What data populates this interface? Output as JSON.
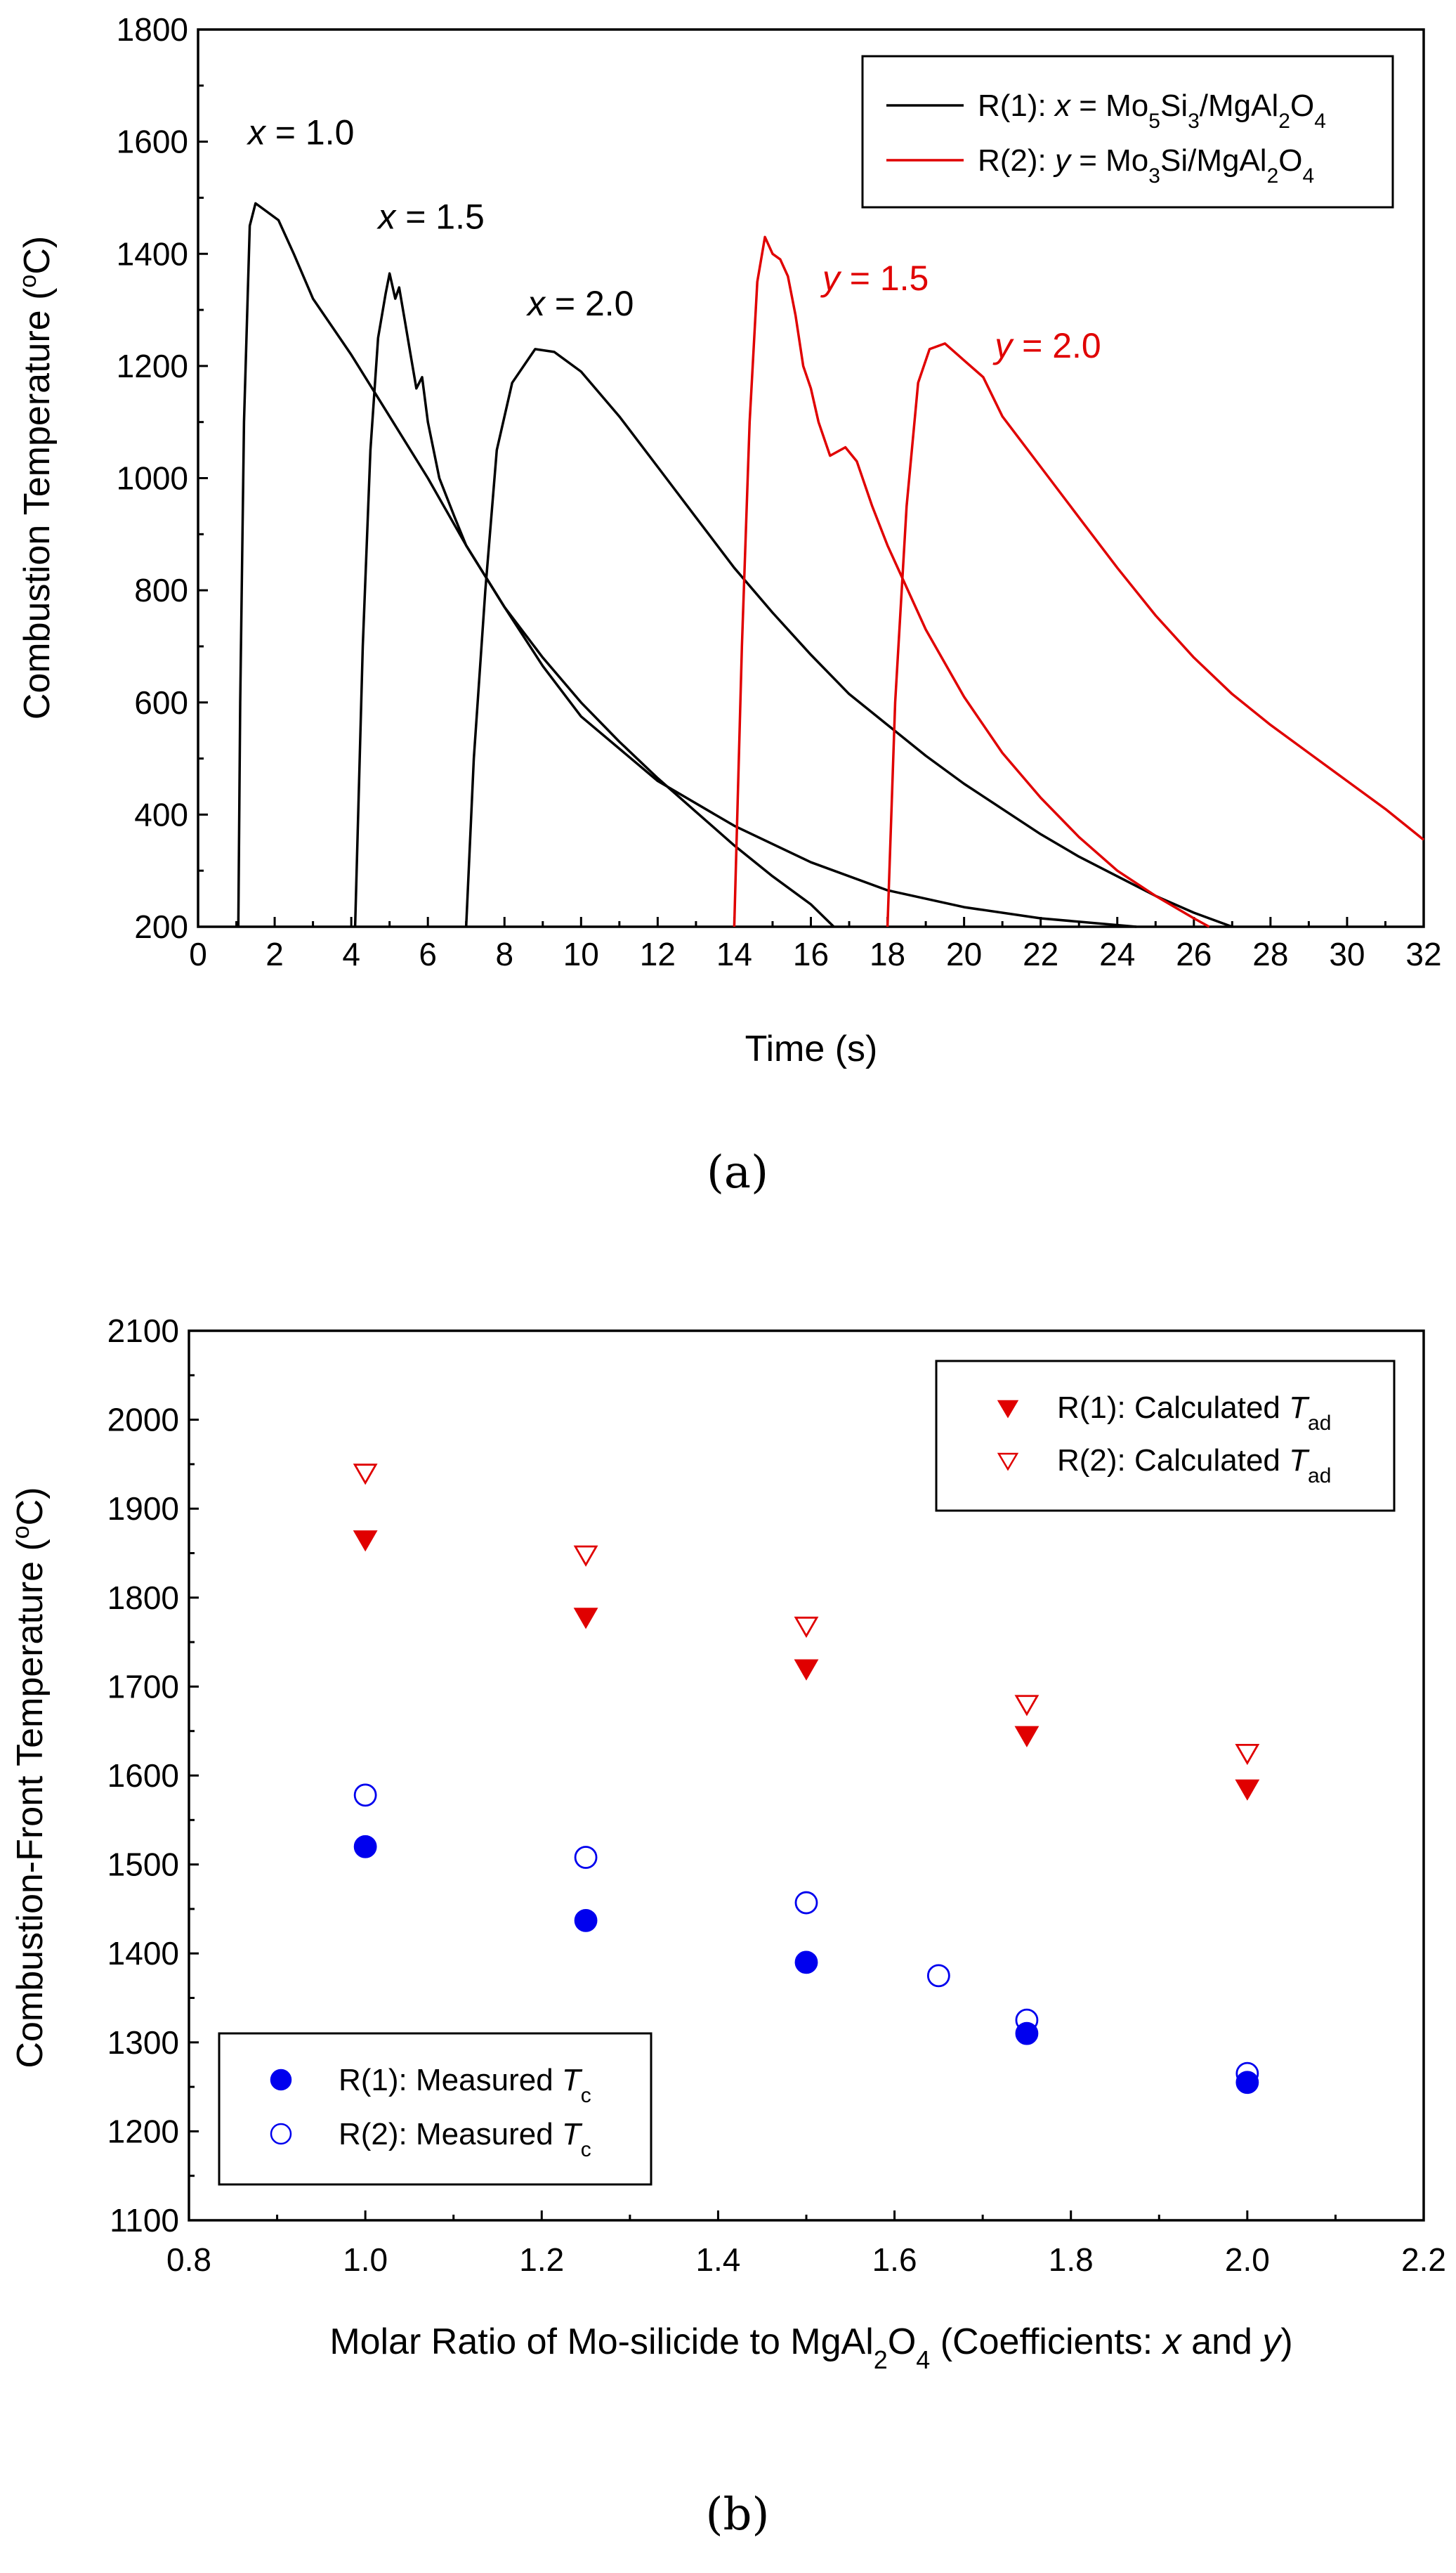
{
  "chart_data": [
    {
      "type": "line",
      "panel_label": "(a)",
      "xlabel": "Time (s)",
      "ylabel": "Combustion Temperature (",
      "ylabel_sup": "o",
      "ylabel_end": "C)",
      "xlim": [
        0,
        32
      ],
      "ylim": [
        200,
        1800
      ],
      "xticks": [
        "0",
        "2",
        "4",
        "6",
        "8",
        "10",
        "12",
        "14",
        "16",
        "18",
        "20",
        "22",
        "24",
        "26",
        "28",
        "30",
        "32"
      ],
      "yticks": [
        "200",
        "400",
        "600",
        "800",
        "1000",
        "1200",
        "1400",
        "1600",
        "1800"
      ],
      "legend": [
        {
          "name": "R(1): x = Mo5Si3/MgAl2O4",
          "prefix": "R(1): ",
          "var": "x",
          "rest": " = Mo",
          "s1": "5",
          "m1": "Si",
          "s2": "3",
          "m2": "/MgAl",
          "s3": "2",
          "m3": "O",
          "s4": "4",
          "color": "#000000"
        },
        {
          "name": "R(2): y = Mo3Si/MgAl2O4",
          "prefix": "R(2): ",
          "var": "y",
          "rest": " = Mo",
          "s1": "3",
          "m1": "Si/MgAl",
          "s2": "2",
          "m2": "O",
          "s3": "4",
          "color": "#e00000"
        }
      ],
      "annotations": [
        {
          "var": "x",
          "text": " = 1.0",
          "color": "#000000",
          "x": 1.3,
          "y": 1595
        },
        {
          "var": "x",
          "text": " = 1.5",
          "color": "#000000",
          "x": 4.7,
          "y": 1445
        },
        {
          "var": "x",
          "text": " = 2.0",
          "color": "#000000",
          "x": 8.6,
          "y": 1290
        },
        {
          "var": "y",
          "text": " = 1.5",
          "color": "#e00000",
          "x": 16.3,
          "y": 1335
        },
        {
          "var": "y",
          "text": " = 2.0",
          "color": "#e00000",
          "x": 20.8,
          "y": 1215
        }
      ],
      "series": [
        {
          "name": "x = 1.0",
          "color": "#000000",
          "points": [
            [
              1.05,
              200
            ],
            [
              1.1,
              600
            ],
            [
              1.2,
              1100
            ],
            [
              1.35,
              1450
            ],
            [
              1.5,
              1490
            ],
            [
              1.8,
              1475
            ],
            [
              2.1,
              1460
            ],
            [
              2.5,
              1400
            ],
            [
              3.0,
              1320
            ],
            [
              3.5,
              1270
            ],
            [
              4.0,
              1220
            ],
            [
              5,
              1110
            ],
            [
              6,
              1000
            ],
            [
              7,
              880
            ],
            [
              8,
              770
            ],
            [
              9,
              680
            ],
            [
              10,
              600
            ],
            [
              11,
              530
            ],
            [
              12,
              465
            ],
            [
              13,
              405
            ],
            [
              14,
              345
            ],
            [
              15,
              290
            ],
            [
              16,
              240
            ],
            [
              16.6,
              200
            ]
          ]
        },
        {
          "name": "x = 1.5",
          "color": "#000000",
          "points": [
            [
              4.1,
              200
            ],
            [
              4.3,
              700
            ],
            [
              4.5,
              1050
            ],
            [
              4.7,
              1250
            ],
            [
              4.9,
              1330
            ],
            [
              5.0,
              1365
            ],
            [
              5.15,
              1320
            ],
            [
              5.25,
              1340
            ],
            [
              5.4,
              1280
            ],
            [
              5.55,
              1220
            ],
            [
              5.7,
              1160
            ],
            [
              5.85,
              1180
            ],
            [
              6.0,
              1100
            ],
            [
              6.3,
              1000
            ],
            [
              6.7,
              930
            ],
            [
              7,
              880
            ],
            [
              8,
              770
            ],
            [
              9,
              665
            ],
            [
              10,
              575
            ],
            [
              12,
              460
            ],
            [
              14,
              380
            ],
            [
              16,
              315
            ],
            [
              18,
              265
            ],
            [
              20,
              235
            ],
            [
              22,
              215
            ],
            [
              24.5,
              200
            ]
          ]
        },
        {
          "name": "x = 2.0",
          "color": "#000000",
          "points": [
            [
              7.0,
              200
            ],
            [
              7.2,
              500
            ],
            [
              7.5,
              800
            ],
            [
              7.8,
              1050
            ],
            [
              8.2,
              1170
            ],
            [
              8.8,
              1230
            ],
            [
              9.3,
              1225
            ],
            [
              10,
              1190
            ],
            [
              11,
              1110
            ],
            [
              12,
              1020
            ],
            [
              13,
              930
            ],
            [
              14,
              840
            ],
            [
              15,
              760
            ],
            [
              16,
              685
            ],
            [
              17,
              615
            ],
            [
              18,
              560
            ],
            [
              19,
              505
            ],
            [
              20,
              455
            ],
            [
              21,
              410
            ],
            [
              22,
              365
            ],
            [
              23,
              325
            ],
            [
              24,
              290
            ],
            [
              25,
              255
            ],
            [
              26,
              225
            ],
            [
              27,
              200
            ]
          ]
        },
        {
          "name": "y = 1.5",
          "color": "#e00000",
          "points": [
            [
              14.0,
              200
            ],
            [
              14.2,
              700
            ],
            [
              14.4,
              1100
            ],
            [
              14.6,
              1350
            ],
            [
              14.8,
              1430
            ],
            [
              15.0,
              1400
            ],
            [
              15.2,
              1390
            ],
            [
              15.4,
              1360
            ],
            [
              15.6,
              1290
            ],
            [
              15.8,
              1200
            ],
            [
              16.0,
              1160
            ],
            [
              16.2,
              1100
            ],
            [
              16.5,
              1040
            ],
            [
              16.9,
              1055
            ],
            [
              17.2,
              1030
            ],
            [
              17.6,
              950
            ],
            [
              18,
              880
            ],
            [
              19,
              730
            ],
            [
              20,
              610
            ],
            [
              21,
              510
            ],
            [
              22,
              430
            ],
            [
              23,
              360
            ],
            [
              24,
              300
            ],
            [
              25,
              255
            ],
            [
              26,
              215
            ],
            [
              26.4,
              200
            ]
          ]
        },
        {
          "name": "y = 2.0",
          "color": "#e00000",
          "points": [
            [
              18.0,
              200
            ],
            [
              18.2,
              600
            ],
            [
              18.5,
              950
            ],
            [
              18.8,
              1170
            ],
            [
              19.1,
              1230
            ],
            [
              19.5,
              1240
            ],
            [
              20.0,
              1210
            ],
            [
              20.5,
              1180
            ],
            [
              21,
              1110
            ],
            [
              22,
              1020
            ],
            [
              23,
              930
            ],
            [
              24,
              840
            ],
            [
              25,
              755
            ],
            [
              26,
              680
            ],
            [
              27,
              615
            ],
            [
              28,
              560
            ],
            [
              29,
              510
            ],
            [
              30,
              460
            ],
            [
              31,
              410
            ],
            [
              32,
              355
            ]
          ]
        }
      ]
    },
    {
      "type": "scatter",
      "panel_label": "(b)",
      "xlabel": "Molar Ratio of Mo-silicide to MgAl",
      "xlabel_sub": "2",
      "xlabel_mid": "O",
      "xlabel_sub2": "4",
      "xlabel_end1": " (Coefficients: ",
      "xlabel_var1": "x",
      "xlabel_and": " and ",
      "xlabel_var2": "y",
      "xlabel_close": ")",
      "ylabel": "Combustion-Front Temperature (",
      "ylabel_sup": "o",
      "ylabel_end": "C)",
      "xlim": [
        0.8,
        2.2
      ],
      "ylim": [
        1100,
        2100
      ],
      "xticks": [
        "0.8",
        "1.0",
        "1.2",
        "1.4",
        "1.6",
        "1.8",
        "2.0",
        "2.2"
      ],
      "yticks": [
        "1100",
        "1200",
        "1300",
        "1400",
        "1500",
        "1600",
        "1700",
        "1800",
        "1900",
        "2000",
        "2100"
      ],
      "series": [
        {
          "name": "R(1): Calculated Tad",
          "prefix": "R(1): Calculated ",
          "var": "T",
          "sub": "ad",
          "marker": "triangle-down-filled",
          "color": "#e00000",
          "x": [
            1.0,
            1.25,
            1.5,
            1.75,
            2.0
          ],
          "values": [
            1865,
            1778,
            1720,
            1645,
            1585
          ]
        },
        {
          "name": "R(2): Calculated Tad",
          "prefix": "R(2): Calculated ",
          "var": "T",
          "sub": "ad",
          "marker": "triangle-down-open",
          "color": "#e00000",
          "x": [
            1.0,
            1.25,
            1.5,
            1.75,
            2.0
          ],
          "values": [
            1940,
            1848,
            1768,
            1680,
            1625
          ]
        },
        {
          "name": "R(1): Measured Tc",
          "prefix": "R(1): Measured ",
          "var": "T",
          "sub": "c",
          "marker": "circle-filled",
          "color": "#0000ee",
          "x": [
            1.0,
            1.25,
            1.5,
            1.75,
            2.0
          ],
          "values": [
            1520,
            1437,
            1390,
            1310,
            1255
          ]
        },
        {
          "name": "R(2): Measured Tc",
          "prefix": "R(2): Measured ",
          "var": "T",
          "sub": "c",
          "marker": "circle-open",
          "color": "#0000ee",
          "x": [
            1.0,
            1.25,
            1.5,
            1.65,
            1.75,
            2.0
          ],
          "values": [
            1578,
            1508,
            1457,
            1375,
            1325,
            1265
          ]
        }
      ]
    }
  ]
}
